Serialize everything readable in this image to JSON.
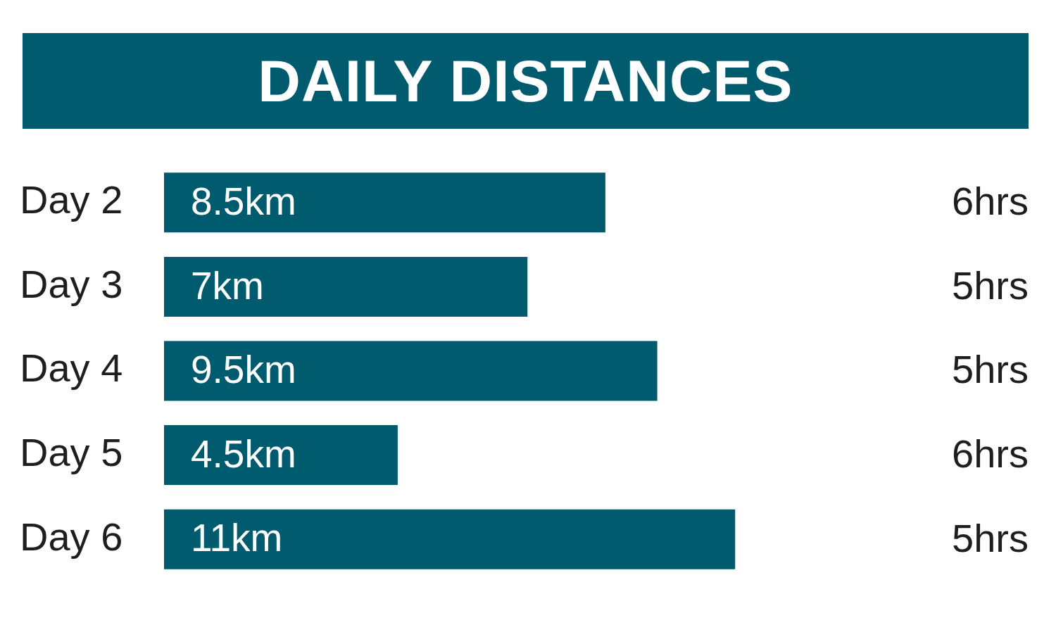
{
  "chart_data": {
    "type": "bar",
    "orientation": "horizontal",
    "title": "DAILY DISTANCES",
    "categories": [
      "Day 2",
      "Day 3",
      "Day 4",
      "Day 5",
      "Day 6"
    ],
    "values": [
      8.5,
      7,
      9.5,
      4.5,
      11
    ],
    "color": "#005b6e",
    "value_labels": [
      "8.5km",
      "7km",
      "9.5km",
      "4.5km",
      "11km"
    ],
    "annotations": [
      "6hrs",
      "5hrs",
      "5hrs",
      "6hrs",
      "5hrs"
    ]
  }
}
